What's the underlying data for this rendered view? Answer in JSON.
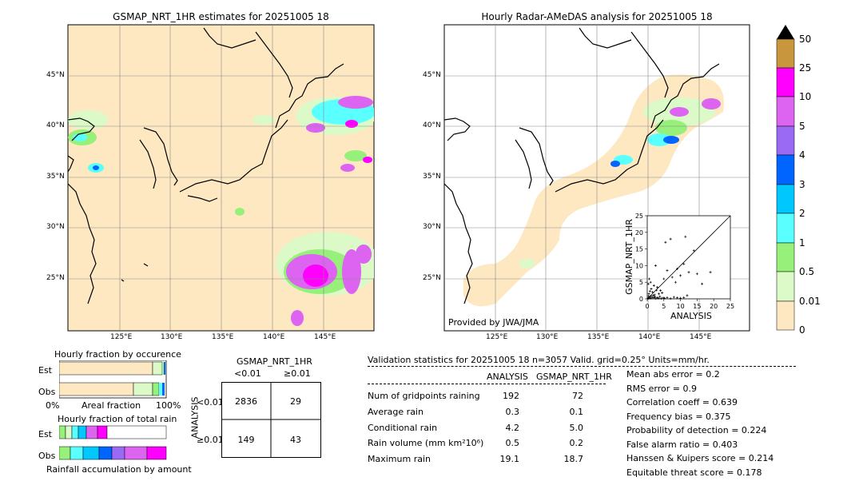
{
  "left_map": {
    "title": "GSMAP_NRT_1HR estimates for 20251005 18",
    "lat_labels": [
      "45°N",
      "40°N",
      "35°N",
      "30°N",
      "25°N"
    ],
    "lon_labels": [
      "125°E",
      "130°E",
      "135°E",
      "140°E",
      "145°E"
    ]
  },
  "right_map": {
    "title": "Hourly Radar-AMeDAS analysis for 20251005 18",
    "lat_labels": [
      "45°N",
      "40°N",
      "35°N",
      "30°N",
      "25°N"
    ],
    "lon_labels": [
      "125°E",
      "130°E",
      "135°E",
      "140°E",
      "145°E"
    ],
    "credit": "Provided by JWA/JMA"
  },
  "colorbar": {
    "labels": [
      "50",
      "25",
      "10",
      "5",
      "4",
      "3",
      "2",
      "1",
      "0.5",
      "0.01",
      "0"
    ],
    "colors": [
      "#000000",
      "#c8963c",
      "#ff00ff",
      "#dc64f0",
      "#9a6af5",
      "#0064ff",
      "#00c8ff",
      "#5affff",
      "#96f07a",
      "#dcfac8",
      "#fde8c2"
    ]
  },
  "chart_data": [
    {
      "type": "scatter",
      "xlabel": "ANALYSIS",
      "ylabel": "GSMAP_NRT_1HR",
      "xlim": [
        0,
        25
      ],
      "ylim": [
        0,
        25
      ],
      "xticks": [
        0,
        5,
        10,
        15,
        20,
        25
      ],
      "yticks": [
        0,
        5,
        10,
        15,
        20,
        25
      ],
      "points": [
        [
          0.2,
          0.1
        ],
        [
          0.4,
          0.3
        ],
        [
          0.6,
          0.2
        ],
        [
          0.8,
          0.5
        ],
        [
          1.0,
          0.2
        ],
        [
          1.2,
          0.8
        ],
        [
          1.5,
          0.4
        ],
        [
          1.8,
          1.0
        ],
        [
          2.0,
          0.3
        ],
        [
          2.3,
          0.6
        ],
        [
          2.6,
          0.1
        ],
        [
          3.0,
          0.4
        ],
        [
          3.4,
          0.2
        ],
        [
          3.8,
          0.7
        ],
        [
          4.2,
          0.1
        ],
        [
          4.8,
          0.3
        ],
        [
          5.2,
          0.2
        ],
        [
          6.0,
          0.4
        ],
        [
          7.0,
          0.1
        ],
        [
          8.0,
          0.5
        ],
        [
          9.0,
          0.3
        ],
        [
          10.0,
          0.2
        ],
        [
          11.0,
          0.4
        ],
        [
          0.5,
          1.5
        ],
        [
          0.8,
          2.3
        ],
        [
          1.2,
          3.0
        ],
        [
          1.6,
          2.0
        ],
        [
          2.2,
          1.2
        ],
        [
          2.8,
          2.6
        ],
        [
          3.5,
          1.5
        ],
        [
          4.5,
          1.8
        ],
        [
          0.3,
          4.5
        ],
        [
          0.6,
          6.0
        ],
        [
          1.0,
          5.0
        ],
        [
          2.0,
          4.0
        ],
        [
          3.0,
          3.5
        ],
        [
          4.0,
          2.5
        ],
        [
          5.0,
          6.0
        ],
        [
          6.0,
          8.5
        ],
        [
          7.5,
          6.5
        ],
        [
          8.5,
          5.0
        ],
        [
          9.0,
          9.0
        ],
        [
          10.0,
          7.0
        ],
        [
          11.0,
          10.5
        ],
        [
          12.5,
          8.0
        ],
        [
          14.0,
          14.5
        ],
        [
          15.0,
          7.5
        ],
        [
          16.5,
          4.5
        ],
        [
          19.0,
          8.0
        ],
        [
          5.5,
          17.0
        ],
        [
          7.0,
          18.0
        ],
        [
          11.5,
          18.7
        ],
        [
          2.5,
          10.0
        ],
        [
          12.0,
          1.0
        ],
        [
          0.4,
          0.8
        ]
      ]
    },
    {
      "type": "bar",
      "title": "Hourly fraction by occurence",
      "categories": [
        "Est",
        "Obs"
      ],
      "xlabel": "Areal fraction",
      "xticks": [
        "0%",
        "100%"
      ]
    },
    {
      "type": "bar",
      "title": "Hourly fraction of total rain",
      "categories": [
        "Est",
        "Obs"
      ],
      "xlabel": "Rainfall accumulation by amount"
    },
    {
      "type": "table",
      "title": "GSMAP_NRT_1HR",
      "col_headers": [
        "<0.01",
        "≥0.01"
      ],
      "row_axis_label": "ANALYSIS",
      "row_headers": [
        "<0.01",
        "≥0.01"
      ],
      "cells": [
        [
          "2836",
          "29"
        ],
        [
          "149",
          "43"
        ]
      ]
    }
  ],
  "validation": {
    "header": "Validation statistics for 20251005 18  n=3057 Valid. grid=0.25° Units=mm/hr.",
    "col_analysis": "ANALYSIS",
    "col_gsmap": "GSMAP_NRT_1HR",
    "rows": [
      {
        "label": "Num of gridpoints raining",
        "analysis": "192",
        "gsmap": "72"
      },
      {
        "label": "Average rain",
        "analysis": "0.3",
        "gsmap": "0.1"
      },
      {
        "label": "Conditional rain",
        "analysis": "4.2",
        "gsmap": "5.0"
      },
      {
        "label": "Rain volume (mm km²10⁶)",
        "analysis": "0.5",
        "gsmap": "0.2"
      },
      {
        "label": "Maximum rain",
        "analysis": "19.1",
        "gsmap": "18.7"
      }
    ],
    "scores": [
      "Mean abs error =    0.2",
      "RMS error =    0.9",
      "Correlation coeff =  0.639",
      "Frequency bias =  0.375",
      "Probability of detection =  0.224",
      "False alarm ratio =  0.403",
      "Hanssen & Kuipers score =  0.214",
      "Equitable threat score =  0.178"
    ]
  }
}
